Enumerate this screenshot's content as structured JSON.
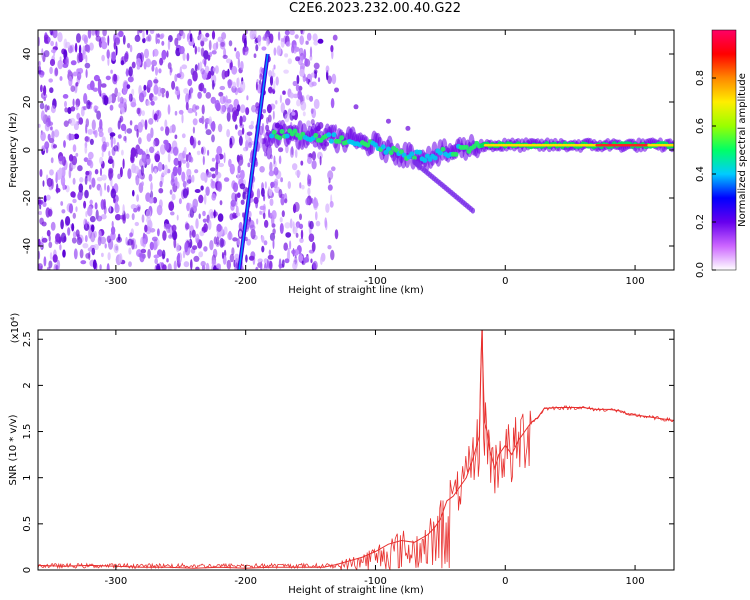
{
  "title": "C2E6.2023.232.00.40.G22",
  "chart_data": [
    {
      "type": "heatmap",
      "xlabel": "Height of straight line (km)",
      "ylabel": "Frequency (Hz)",
      "xlim": [
        -360,
        130
      ],
      "ylim": [
        -50,
        50
      ],
      "xticks": [
        -300,
        -200,
        -100,
        0,
        100
      ],
      "yticks": [
        -40,
        -20,
        0,
        20,
        40
      ],
      "colorbar": {
        "label": "Normalized spectral amplitude",
        "ticks": [
          0.0,
          0.2,
          0.4,
          0.6,
          0.8
        ],
        "range": [
          0,
          1
        ],
        "colors": [
          "#ffffff",
          "#cc66ff",
          "#6600ee",
          "#0000ff",
          "#00ccff",
          "#00ff66",
          "#99ff00",
          "#ffee00",
          "#ff8800",
          "#ff0000",
          "#ff0066"
        ]
      },
      "features": {
        "ridge_after_cutoff": [
          {
            "x": -180,
            "y": 7
          },
          {
            "x": -150,
            "y": 6
          },
          {
            "x": -120,
            "y": 4
          },
          {
            "x": -100,
            "y": 2
          },
          {
            "x": -90,
            "y": 0
          },
          {
            "x": -75,
            "y": -2
          },
          {
            "x": -60,
            "y": -3
          },
          {
            "x": -45,
            "y": -1
          },
          {
            "x": -30,
            "y": 1
          },
          {
            "x": -15,
            "y": 2
          },
          {
            "x": 0,
            "y": 2
          },
          {
            "x": 50,
            "y": 2
          },
          {
            "x": 90,
            "y": 2
          },
          {
            "x": 130,
            "y": 2
          }
        ],
        "diagonal_line": [
          {
            "x": -205,
            "y": -50
          },
          {
            "x": -183,
            "y": 40
          }
        ]
      }
    },
    {
      "type": "line",
      "xlabel": "Height of straight line (km)",
      "ylabel": "SNR (10 * v/v)",
      "yscale_label": "(x10⁴)",
      "xlim": [
        -360,
        130
      ],
      "ylim": [
        0,
        2.6
      ],
      "xticks": [
        -300,
        -200,
        -100,
        0,
        100
      ],
      "yticks": [
        0.0,
        0.5,
        1.0,
        1.5,
        2.0,
        2.5
      ],
      "line_color": "#e8312f",
      "series": [
        {
          "x": [
            -360,
            -340,
            -320,
            -300,
            -280,
            -260,
            -240,
            -220,
            -200,
            -180,
            -160,
            -140,
            -130,
            -120,
            -110,
            -100,
            -90,
            -80,
            -70,
            -60,
            -55,
            -50,
            -45,
            -40,
            -35,
            -30,
            -25,
            -20,
            -18,
            -16,
            -14,
            -12,
            -10,
            -8,
            -5,
            0,
            5,
            10,
            15,
            20,
            25,
            30,
            40,
            50,
            60,
            70,
            80,
            90,
            95,
            100,
            110,
            120,
            130
          ],
          "y": [
            0.05,
            0.04,
            0.05,
            0.04,
            0.03,
            0.03,
            0.02,
            0.03,
            0.02,
            0.03,
            0.03,
            0.03,
            0.06,
            0.1,
            0.14,
            0.2,
            0.28,
            0.32,
            0.3,
            0.38,
            0.45,
            0.55,
            0.75,
            0.8,
            0.9,
            1.0,
            1.2,
            1.45,
            2.6,
            1.6,
            1.5,
            1.3,
            1.2,
            1.1,
            1.25,
            1.35,
            1.25,
            1.4,
            1.5,
            1.6,
            1.65,
            1.75,
            1.76,
            1.76,
            1.76,
            1.74,
            1.74,
            1.72,
            1.68,
            1.68,
            1.66,
            1.64,
            1.62
          ]
        }
      ]
    }
  ]
}
